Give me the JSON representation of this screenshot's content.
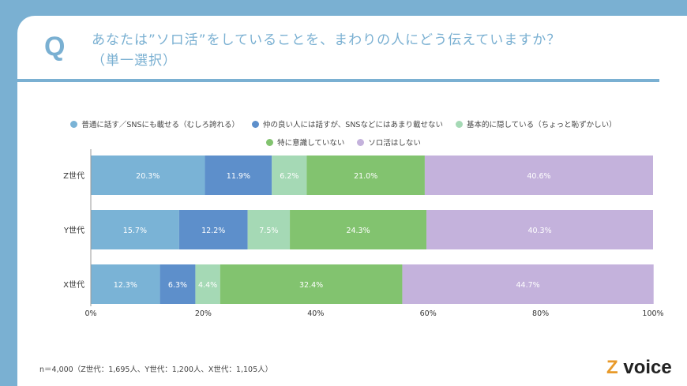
{
  "header": {
    "q_mark": "Q",
    "title_line1": "あなたは”ソロ活”をしていることを、まわりの人にどう伝えていますか？",
    "title_line2": "（単一選択）"
  },
  "chart_data": {
    "type": "bar",
    "orientation": "horizontal-stacked-100",
    "categories": [
      "Z世代",
      "Y世代",
      "X世代"
    ],
    "series": [
      {
        "name": "普通に話す／SNSにも載せる（むしろ誇れる）",
        "color": "#7ab3d6",
        "values": [
          20.3,
          15.7,
          12.3
        ]
      },
      {
        "name": "仲の良い人には話すが、SNSなどにはあまり載せない",
        "color": "#5d8fcb",
        "values": [
          11.9,
          12.2,
          6.3
        ]
      },
      {
        "name": "基本的に隠している（ちょっと恥ずかしい）",
        "color": "#a5d9b5",
        "values": [
          6.2,
          7.5,
          4.4
        ]
      },
      {
        "name": "特に意識していない",
        "color": "#82c36f",
        "values": [
          21.0,
          24.3,
          32.4
        ]
      },
      {
        "name": "ソロ活はしない",
        "color": "#c4b2dc",
        "values": [
          40.6,
          40.3,
          44.7
        ]
      }
    ],
    "xlim": [
      0,
      100
    ],
    "xticks": [
      "0%",
      "20%",
      "40%",
      "60%",
      "80%",
      "100%"
    ],
    "legend_placement": "top",
    "grid": false
  },
  "footer": {
    "note": "n＝4,000（Z世代：1,695人、Y世代：1,200人、X世代：1,105人）",
    "logo": "Z voice"
  }
}
